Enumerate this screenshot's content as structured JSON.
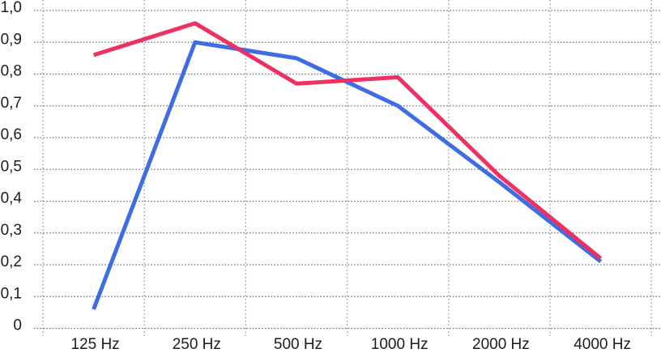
{
  "chart_data": {
    "type": "line",
    "title": "",
    "xlabel": "",
    "ylabel": "",
    "categories": [
      "125 Hz",
      "250 Hz",
      "500 Hz",
      "1000 Hz",
      "2000 Hz",
      "4000 Hz"
    ],
    "series": [
      {
        "name": "blue-series",
        "color": "#3e6ce4",
        "values": [
          0.06,
          0.9,
          0.85,
          0.7,
          0.46,
          0.21
        ]
      },
      {
        "name": "pink-series",
        "color": "#ee3161",
        "values": [
          0.86,
          0.96,
          0.77,
          0.79,
          0.48,
          0.22
        ]
      }
    ],
    "ylim": [
      0,
      1.0
    ],
    "ytick_step": 0.1,
    "ytick_labels": [
      "0",
      "0,1",
      "0,2",
      "0,3",
      "0,4",
      "0,5",
      "0,6",
      "0,7",
      "0,8",
      "0,9",
      "1,0"
    ],
    "decimal_separator": ",",
    "grid": true,
    "legend_position": "none"
  },
  "colors": {
    "background": "#ffffff",
    "text": "#1c1c1c",
    "grid_horizontal": "#6a6a6a",
    "grid_vertical": "#9b9b9b"
  }
}
